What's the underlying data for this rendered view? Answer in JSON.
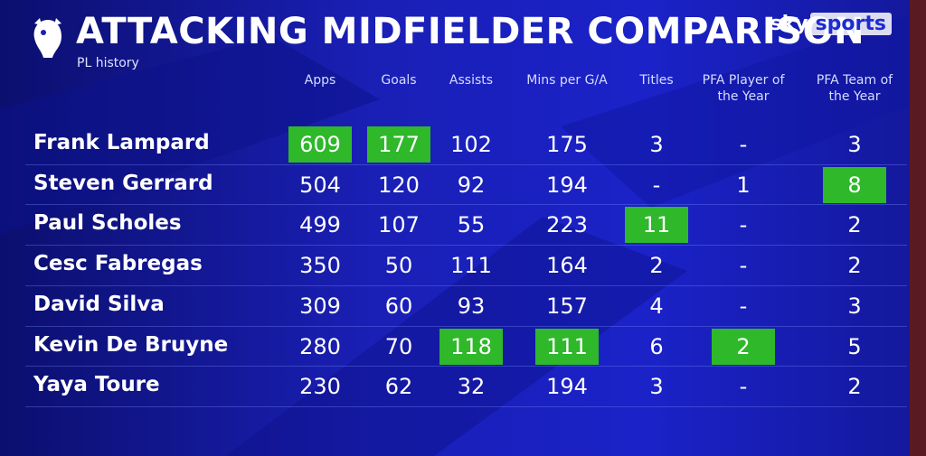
{
  "header": {
    "title": "ATTACKING MIDFIELDER COMPARISON",
    "subtitle": "PL history",
    "brand": {
      "name": "sky",
      "product": "sports"
    }
  },
  "table": {
    "highlight_color": "#2eb82a",
    "columns": [
      {
        "label": "Apps",
        "leaders": [
          0
        ]
      },
      {
        "label": "Goals",
        "leaders": [
          0
        ]
      },
      {
        "label": "Assists",
        "leaders": [
          5
        ]
      },
      {
        "label": "Mins per G/A",
        "leaders": [
          5
        ]
      },
      {
        "label": "Titles",
        "leaders": [
          2
        ]
      },
      {
        "label": "PFA Player of the Year",
        "leaders": [
          5
        ]
      },
      {
        "label": "PFA Team of the Year",
        "leaders": [
          1
        ]
      }
    ],
    "rows": [
      {
        "name": "Frank Lampard",
        "cells": [
          609,
          177,
          102,
          175,
          3,
          "-",
          3
        ]
      },
      {
        "name": "Steven Gerrard",
        "cells": [
          504,
          120,
          92,
          194,
          "-",
          1,
          8
        ]
      },
      {
        "name": "Paul Scholes",
        "cells": [
          499,
          107,
          55,
          223,
          11,
          "-",
          2
        ]
      },
      {
        "name": "Cesc Fabregas",
        "cells": [
          350,
          50,
          111,
          164,
          2,
          "-",
          2
        ]
      },
      {
        "name": "David Silva",
        "cells": [
          309,
          60,
          93,
          157,
          4,
          "-",
          3
        ]
      },
      {
        "name": "Kevin De Bruyne",
        "cells": [
          280,
          70,
          118,
          111,
          6,
          2,
          5
        ]
      },
      {
        "name": "Yaya Toure",
        "cells": [
          230,
          62,
          32,
          194,
          3,
          "-",
          2
        ]
      }
    ]
  }
}
